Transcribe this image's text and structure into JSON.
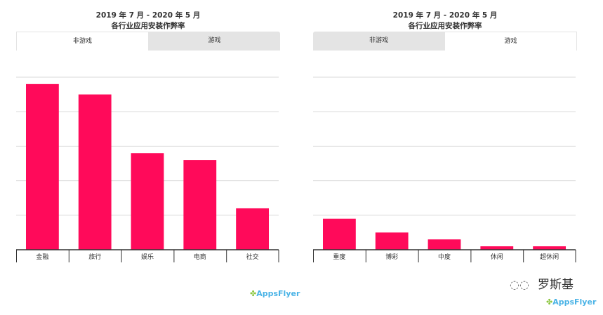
{
  "panels": [
    {
      "title_line1": "2019 年 7 月 - 2020 年 5 月",
      "title_line2": "各行业应用安装作弊率",
      "tabs": [
        "非游戏",
        "游戏"
      ],
      "active_tab": 0
    },
    {
      "title_line1": "2019 年 7 月 - 2020 年 5 月",
      "title_line2": "各行业应用安装作弊率",
      "tabs": [
        "非游戏",
        "游戏"
      ],
      "active_tab": 1
    }
  ],
  "chart_data": [
    {
      "type": "bar",
      "categories": [
        "金融",
        "旅行",
        "娱乐",
        "电商",
        "社交"
      ],
      "values": [
        4.8,
        4.5,
        2.8,
        2.6,
        1.2
      ],
      "ylim": [
        0,
        5
      ],
      "grid": true,
      "color": "#ff0a5a"
    },
    {
      "type": "bar",
      "categories": [
        "重度",
        "博彩",
        "中度",
        "休闲",
        "超休闲"
      ],
      "values": [
        0.9,
        0.5,
        0.3,
        0.1,
        0.1
      ],
      "ylim": [
        0,
        5
      ],
      "grid": true,
      "color": "#ff0a5a"
    }
  ],
  "logo": {
    "text": "AppsFlyer"
  },
  "watermark": {
    "text": "罗斯基",
    "icon": "wechat-icon"
  }
}
